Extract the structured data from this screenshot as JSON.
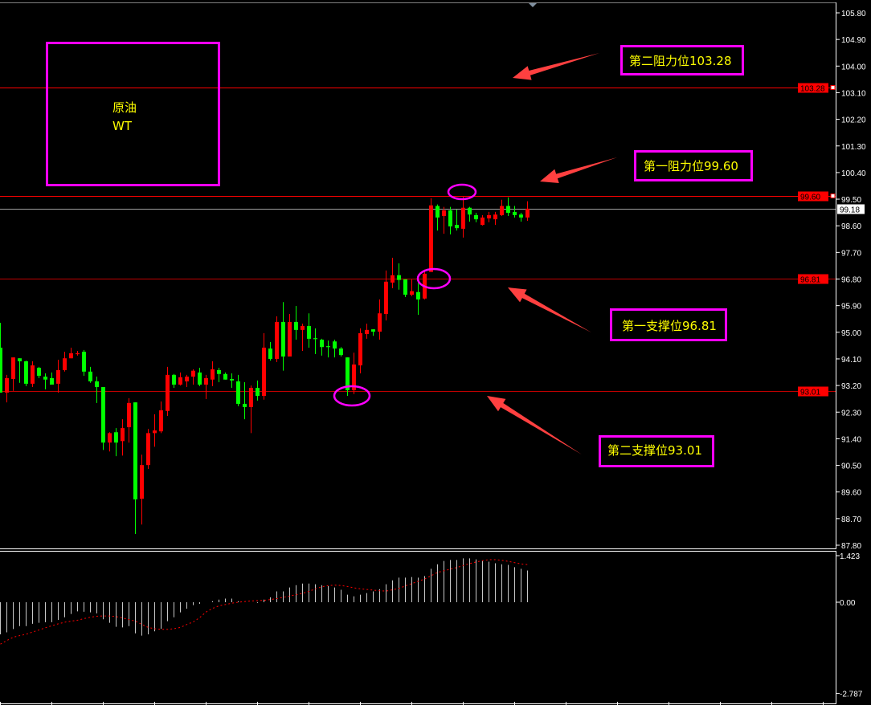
{
  "chart_data": {
    "type": "candlestick",
    "title": "",
    "colors": {
      "up": "#ff0000",
      "down": "#00ff00",
      "background": "#000000",
      "axis": "#ffffff",
      "level": "#ff0000",
      "current_price_line": "#a0a0a0",
      "annotation_box": "#ff00ff",
      "annotation_text": "#ffff00",
      "arrow": "#ff4040"
    },
    "y_axis": {
      "range": [
        87.8,
        105.8
      ],
      "ticks": [
        "105.80",
        "104.90",
        "104.00",
        "103.10",
        "102.20",
        "101.30",
        "100.40",
        "99.50",
        "98.60",
        "97.70",
        "96.80",
        "95.90",
        "95.00",
        "94.10",
        "93.20",
        "92.30",
        "91.40",
        "90.50",
        "89.60",
        "88.70",
        "87.80"
      ]
    },
    "current_price": "99.18",
    "candles": [
      [
        94.48,
        95.32,
        92.96,
        92.96
      ],
      [
        92.96,
        93.56,
        92.63,
        93.45
      ],
      [
        93.42,
        94.15,
        93.02,
        94.15
      ],
      [
        94.12,
        94.12,
        93.29,
        94.02
      ],
      [
        94.02,
        94.04,
        93.18,
        93.26
      ],
      [
        93.26,
        94.02,
        93.15,
        93.88
      ],
      [
        93.8,
        93.83,
        93.45,
        93.53
      ],
      [
        93.5,
        93.61,
        93.07,
        93.4
      ],
      [
        93.45,
        93.64,
        93.23,
        93.23
      ],
      [
        93.26,
        94.07,
        92.96,
        93.72
      ],
      [
        93.72,
        94.34,
        93.67,
        94.12
      ],
      [
        94.12,
        94.48,
        94.12,
        94.29
      ],
      [
        94.26,
        94.37,
        94.21,
        94.29
      ],
      [
        94.34,
        94.4,
        93.53,
        93.67
      ],
      [
        93.67,
        93.83,
        93.29,
        93.34
      ],
      [
        93.34,
        93.5,
        92.61,
        93.15
      ],
      [
        93.15,
        93.15,
        91.02,
        91.27
      ],
      [
        91.27,
        91.62,
        90.97,
        91.59
      ],
      [
        91.62,
        91.76,
        90.81,
        91.27
      ],
      [
        91.32,
        92.06,
        90.83,
        91.76
      ],
      [
        91.79,
        92.77,
        91.27,
        92.61
      ],
      [
        92.63,
        92.63,
        88.18,
        89.35
      ],
      [
        89.37,
        90.86,
        88.5,
        90.51
      ],
      [
        90.51,
        91.73,
        90.38,
        91.59
      ],
      [
        91.59,
        92.23,
        91.13,
        91.68
      ],
      [
        91.65,
        92.66,
        91.59,
        92.36
      ],
      [
        92.34,
        93.83,
        92.17,
        93.56
      ],
      [
        93.56,
        93.59,
        93.12,
        93.23
      ],
      [
        93.23,
        93.64,
        93.2,
        93.48
      ],
      [
        93.34,
        93.56,
        93.15,
        93.5
      ],
      [
        93.5,
        93.75,
        93.23,
        93.7
      ],
      [
        93.64,
        93.8,
        93.18,
        93.23
      ],
      [
        93.23,
        93.56,
        92.74,
        93.45
      ],
      [
        93.4,
        94.02,
        93.18,
        93.75
      ],
      [
        93.72,
        93.8,
        93.31,
        93.59
      ],
      [
        93.59,
        93.64,
        93.4,
        93.4
      ],
      [
        93.42,
        93.61,
        93.12,
        93.37
      ],
      [
        93.34,
        93.56,
        92.5,
        92.58
      ],
      [
        92.58,
        93.31,
        92.06,
        92.47
      ],
      [
        92.47,
        93.2,
        91.59,
        93.12
      ],
      [
        93.12,
        93.37,
        92.69,
        92.85
      ],
      [
        92.85,
        94.97,
        92.72,
        94.48
      ],
      [
        94.45,
        94.67,
        94.04,
        94.1
      ],
      [
        94.1,
        95.54,
        93.99,
        95.35
      ],
      [
        95.35,
        96.02,
        93.7,
        94.18
      ],
      [
        94.18,
        95.62,
        94.18,
        95.35
      ],
      [
        95.35,
        95.89,
        94.75,
        95.08
      ],
      [
        95.08,
        95.29,
        94.37,
        95.21
      ],
      [
        95.21,
        95.64,
        94.48,
        94.78
      ],
      [
        94.8,
        95.13,
        94.26,
        94.78
      ],
      [
        94.75,
        94.78,
        94.21,
        94.5
      ],
      [
        94.53,
        94.72,
        94.15,
        94.5
      ],
      [
        94.69,
        94.75,
        94.15,
        94.45
      ],
      [
        94.45,
        94.5,
        94.18,
        94.23
      ],
      [
        94.15,
        94.15,
        92.85,
        93.04
      ],
      [
        93.04,
        94.31,
        92.91,
        93.91
      ],
      [
        93.88,
        95.13,
        93.61,
        94.97
      ],
      [
        94.94,
        95.29,
        94.78,
        95.08
      ],
      [
        95.1,
        95.1,
        94.88,
        95.02
      ],
      [
        95.02,
        96.11,
        94.75,
        95.64
      ],
      [
        95.62,
        97.09,
        95.4,
        96.71
      ],
      [
        96.68,
        97.52,
        96.49,
        96.93
      ],
      [
        96.93,
        97.33,
        96.44,
        96.77
      ],
      [
        96.79,
        96.79,
        96.19,
        96.27
      ],
      [
        96.27,
        96.79,
        96.22,
        96.39
      ],
      [
        96.36,
        96.66,
        95.59,
        96.11
      ],
      [
        96.14,
        97.12,
        96.11,
        96.98
      ],
      [
        97.04,
        99.53,
        97.04,
        99.29
      ],
      [
        99.27,
        99.32,
        98.44,
        98.88
      ],
      [
        98.93,
        99.24,
        98.33,
        99.12
      ],
      [
        99.12,
        99.24,
        98.31,
        98.58
      ],
      [
        98.63,
        99.15,
        98.44,
        98.52
      ],
      [
        98.5,
        99.58,
        98.2,
        99.21
      ],
      [
        99.21,
        99.24,
        98.74,
        98.98
      ],
      [
        98.96,
        99.04,
        98.72,
        98.82
      ],
      [
        98.63,
        98.96,
        98.61,
        98.88
      ],
      [
        98.85,
        99.07,
        98.72,
        98.96
      ],
      [
        98.82,
        99.07,
        98.63,
        98.98
      ],
      [
        98.96,
        99.48,
        98.93,
        99.27
      ],
      [
        99.27,
        99.56,
        98.93,
        99.04
      ],
      [
        99.07,
        99.27,
        98.88,
        98.96
      ],
      [
        98.98,
        99.04,
        98.74,
        98.88
      ],
      [
        98.88,
        99.43,
        98.77,
        99.18
      ]
    ],
    "candle_format": [
      "open",
      "high",
      "low",
      "close"
    ],
    "levels": [
      {
        "value": 103.28,
        "label": "103.28",
        "style": "solid"
      },
      {
        "value": 99.6,
        "label": "99.60",
        "style": "solid"
      },
      {
        "value": 96.81,
        "label": "96.81",
        "style": "thin"
      },
      {
        "value": 93.01,
        "label": "93.01",
        "style": "thin"
      }
    ],
    "indicator": {
      "type": "macd",
      "range": [
        -2.787,
        1.423
      ],
      "ticks": [
        "1.423",
        "0.00",
        "-2.787"
      ],
      "histogram": [
        -0.98,
        -0.92,
        -0.82,
        -0.73,
        -0.73,
        -0.66,
        -0.63,
        -0.61,
        -0.61,
        -0.54,
        -0.46,
        -0.36,
        -0.28,
        -0.29,
        -0.31,
        -0.34,
        -0.52,
        -0.63,
        -0.75,
        -0.77,
        -0.73,
        -0.95,
        -1.02,
        -0.98,
        -0.89,
        -0.81,
        -0.58,
        -0.46,
        -0.31,
        -0.2,
        -0.09,
        -0.05,
        0.0,
        0.03,
        0.08,
        0.11,
        0.11,
        0.03,
        0.0,
        0.0,
        -0.02,
        0.08,
        0.15,
        0.33,
        0.33,
        0.45,
        0.52,
        0.57,
        0.57,
        0.55,
        0.52,
        0.49,
        0.45,
        0.38,
        0.23,
        0.18,
        0.23,
        0.28,
        0.33,
        0.4,
        0.55,
        0.67,
        0.75,
        0.75,
        0.77,
        0.75,
        0.8,
        1.02,
        1.16,
        1.26,
        1.29,
        1.29,
        1.34,
        1.34,
        1.31,
        1.26,
        1.24,
        1.19,
        1.16,
        1.14,
        1.07,
        1.02,
        0.97
      ],
      "signal": [
        -1.28,
        -1.17,
        -1.07,
        -1.02,
        -0.98,
        -0.91,
        -0.85,
        -0.78,
        -0.72,
        -0.66,
        -0.61,
        -0.58,
        -0.55,
        -0.5,
        -0.46,
        -0.43,
        -0.42,
        -0.42,
        -0.44,
        -0.48,
        -0.53,
        -0.58,
        -0.68,
        -0.77,
        -0.81,
        -0.83,
        -0.83,
        -0.81,
        -0.77,
        -0.68,
        -0.6,
        -0.47,
        -0.3,
        -0.19,
        -0.11,
        -0.07,
        -0.03,
        0.0,
        0.02,
        0.04,
        0.05,
        0.06,
        0.08,
        0.11,
        0.15,
        0.19,
        0.23,
        0.27,
        0.33,
        0.41,
        0.47,
        0.51,
        0.52,
        0.51,
        0.48,
        0.44,
        0.41,
        0.39,
        0.37,
        0.35,
        0.34,
        0.38,
        0.42,
        0.5,
        0.57,
        0.64,
        0.71,
        0.81,
        0.91,
        0.96,
        1.01,
        1.06,
        1.12,
        1.18,
        1.23,
        1.27,
        1.3,
        1.3,
        1.28,
        1.25,
        1.21,
        1.17,
        1.15
      ]
    },
    "annotations": {
      "title_box": {
        "line1": "原油",
        "line2": "WT"
      },
      "labels": [
        "第二阻力位103.28",
        "第一阻力位99.60",
        "第一支撑位96.81",
        "第二支撑位93.01"
      ]
    }
  }
}
